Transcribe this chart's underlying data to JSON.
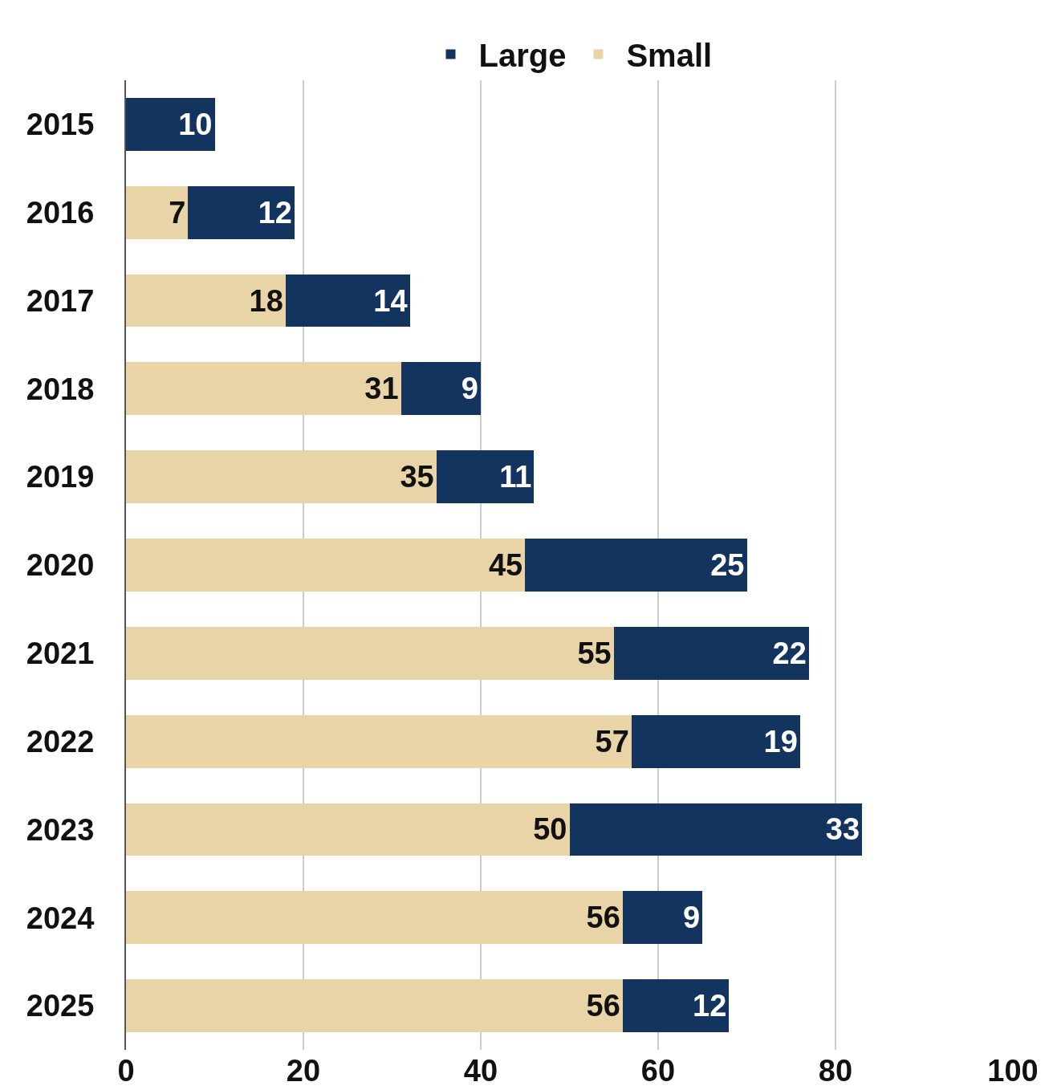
{
  "chart_data": {
    "type": "bar",
    "orientation": "horizontal",
    "stacked": true,
    "categories": [
      "2015",
      "2016",
      "2017",
      "2018",
      "2019",
      "2020",
      "2021",
      "2022",
      "2023",
      "2024",
      "2025"
    ],
    "series": [
      {
        "name": "Small",
        "color": "#e8d4a7",
        "values": [
          null,
          7,
          18,
          31,
          35,
          45,
          55,
          57,
          50,
          56,
          56
        ]
      },
      {
        "name": "Large",
        "color": "#13345f",
        "values": [
          10,
          12,
          14,
          9,
          11,
          25,
          22,
          19,
          33,
          9,
          12
        ]
      }
    ],
    "xlim": [
      0,
      100
    ],
    "xticks": [
      0,
      20,
      40,
      60,
      80,
      100
    ],
    "grid": "x",
    "legend": "top",
    "data_labels": true
  }
}
